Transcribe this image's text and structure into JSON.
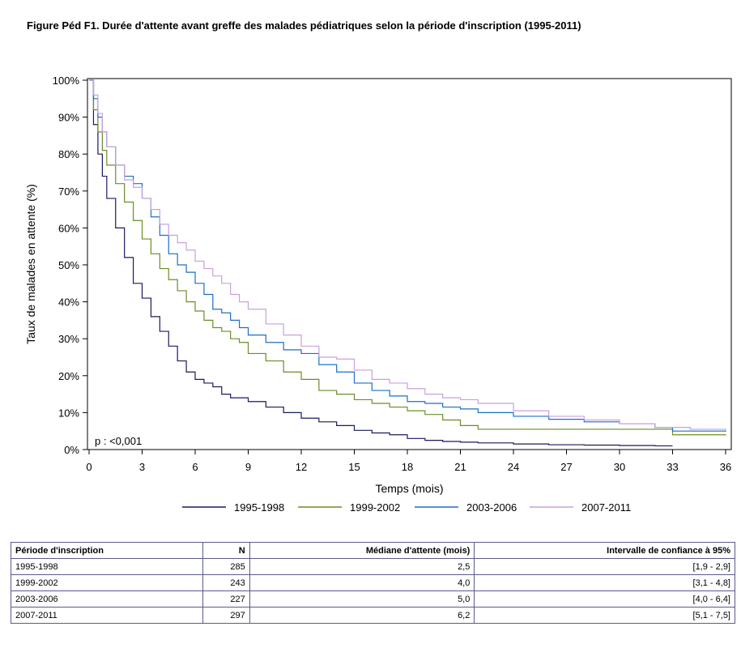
{
  "figure_title": "Figure Péd F1. Durée d'attente avant greffe des malades pédiatriques selon la période d'inscription (1995-2011)",
  "colors": {
    "s1": "#1a1a5e",
    "s2": "#6b8e23",
    "s3": "#1c6fc6",
    "s4": "#c9a0dc",
    "frame": "#000000",
    "table_border": "#5a5a8c"
  },
  "chart_data": {
    "type": "line",
    "step": true,
    "xlabel": "Temps (mois)",
    "ylabel": "Taux de malades en attente (%)",
    "xlim": [
      0,
      36
    ],
    "ylim": [
      0,
      100
    ],
    "xticks": [
      0,
      3,
      6,
      9,
      12,
      15,
      18,
      21,
      24,
      27,
      30,
      33,
      36
    ],
    "yticks": [
      0,
      10,
      20,
      30,
      40,
      50,
      60,
      70,
      80,
      90,
      100
    ],
    "ytick_labels": [
      "0%",
      "10%",
      "20%",
      "30%",
      "40%",
      "50%",
      "60%",
      "70%",
      "80%",
      "90%",
      "100%"
    ],
    "grid": false,
    "legend_position": "bottom",
    "annotation": "p : <0,001",
    "series": [
      {
        "name": "1995-1998",
        "x": [
          0,
          0.25,
          0.5,
          0.75,
          1,
          1.5,
          2,
          2.5,
          3,
          3.5,
          4,
          4.5,
          5,
          5.5,
          6,
          6.5,
          7,
          7.5,
          8,
          9,
          10,
          11,
          12,
          13,
          14,
          15,
          16,
          17,
          18,
          19,
          20,
          21,
          22,
          24,
          26,
          28,
          30,
          32,
          33
        ],
        "values": [
          100,
          88,
          80,
          74,
          68,
          60,
          52,
          45,
          41,
          36,
          32,
          28,
          24,
          21,
          19,
          18,
          17,
          15,
          14,
          13,
          11.5,
          10,
          8.5,
          7.5,
          6.5,
          5.2,
          4.5,
          4,
          3,
          2.5,
          2.2,
          2,
          1.8,
          1.5,
          1.3,
          1.2,
          1.1,
          1,
          1
        ]
      },
      {
        "name": "1999-2002",
        "x": [
          0,
          0.25,
          0.5,
          0.75,
          1,
          1.5,
          2,
          2.5,
          3,
          3.5,
          4,
          4.5,
          5,
          5.5,
          6,
          6.5,
          7,
          7.5,
          8,
          8.5,
          9,
          10,
          11,
          12,
          13,
          14,
          15,
          16,
          17,
          18,
          19,
          20,
          21,
          22,
          24,
          27,
          30,
          32,
          33,
          36
        ],
        "values": [
          100,
          92,
          86,
          81,
          77,
          72,
          67,
          62,
          57,
          53,
          49,
          46,
          43,
          40,
          37.5,
          35,
          33,
          32,
          30,
          29,
          26,
          24,
          21,
          19,
          16,
          15,
          13.5,
          12.5,
          11.5,
          10.5,
          9.5,
          8,
          6.5,
          5.5,
          5.5,
          5.5,
          5.5,
          5.5,
          4,
          3.8
        ]
      },
      {
        "name": "2003-2006",
        "x": [
          0,
          0.25,
          0.5,
          0.75,
          1,
          1.5,
          2,
          2.5,
          3,
          3.5,
          4,
          4.5,
          5,
          5.5,
          6,
          6.5,
          7,
          7.5,
          8,
          8.5,
          9,
          10,
          11,
          12,
          13,
          14,
          15,
          16,
          17,
          18,
          19,
          20,
          21,
          22,
          24,
          26,
          28,
          30,
          32,
          33,
          36
        ],
        "values": [
          100,
          95,
          90,
          86,
          82,
          77,
          74,
          72,
          68,
          63,
          58,
          53,
          50,
          48,
          45,
          42,
          38,
          37,
          35,
          33,
          31,
          29,
          27,
          26,
          23,
          21,
          18,
          16,
          14.5,
          13,
          12.5,
          11.5,
          11,
          10,
          9,
          8.2,
          7.5,
          7,
          6,
          5,
          4.8
        ]
      },
      {
        "name": "2007-2011",
        "x": [
          0,
          0.25,
          0.5,
          0.75,
          1,
          1.5,
          2,
          2.5,
          3,
          3.5,
          4,
          4.5,
          5,
          5.5,
          6,
          6.5,
          7,
          7.5,
          8,
          8.5,
          9,
          10,
          11,
          12,
          13,
          14,
          15,
          16,
          17,
          18,
          19,
          20,
          21,
          22,
          24,
          26,
          28,
          30,
          32,
          34,
          36
        ],
        "values": [
          100,
          96,
          91,
          86,
          82,
          77,
          73,
          71,
          68,
          65,
          61,
          58,
          56,
          54,
          51,
          49,
          47,
          45,
          42,
          40,
          38,
          34,
          31,
          28,
          25,
          24.5,
          21.5,
          19,
          18,
          16.5,
          15,
          14,
          13.5,
          12.5,
          10.5,
          9,
          8,
          7,
          6,
          5.5,
          5.2
        ]
      }
    ]
  },
  "results_table": {
    "headers": [
      "Période d'inscription",
      "N",
      "Médiane d'attente (mois)",
      "Intervalle de confiance à 95%"
    ],
    "rows": [
      [
        "1995-1998",
        "285",
        "2,5",
        "[1,9 - 2,9]"
      ],
      [
        "1999-2002",
        "243",
        "4,0",
        "[3,1 - 4,8]"
      ],
      [
        "2003-2006",
        "227",
        "5,0",
        "[4,0 - 6,4]"
      ],
      [
        "2007-2011",
        "297",
        "6,2",
        "[5,1 - 7,5]"
      ]
    ]
  }
}
